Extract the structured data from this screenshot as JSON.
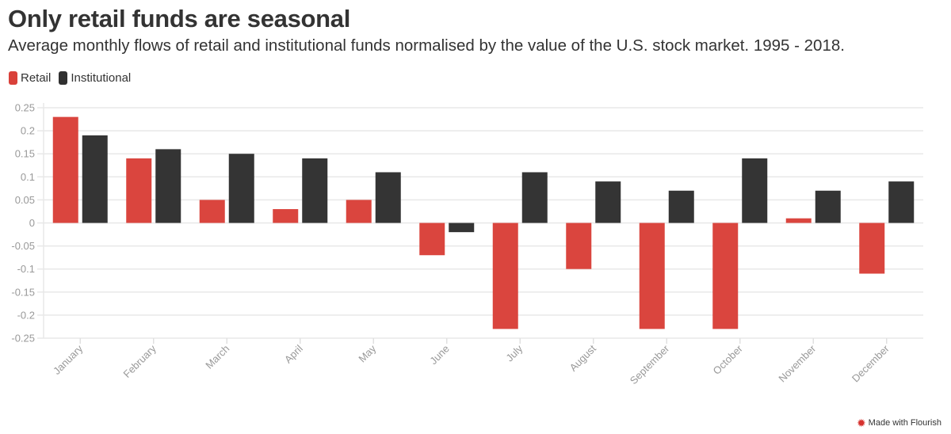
{
  "header": {
    "title": "Only retail funds are seasonal",
    "subtitle": "Average monthly flows of retail and institutional funds normalised by the value of the U.S. stock market. 1995 - 2018."
  },
  "legend": [
    {
      "label": "Retail",
      "color": "#d9413a"
    },
    {
      "label": "Institutional",
      "color": "#303030"
    }
  ],
  "footer": {
    "label": "Made with Flourish",
    "icon": "flourish-star-icon"
  },
  "chart_data": {
    "type": "bar",
    "title": "Only retail funds are seasonal",
    "subtitle": "Average monthly flows of retail and institutional funds normalised by the value of the U.S. stock market. 1995 - 2018.",
    "xlabel": "",
    "ylabel": "",
    "categories": [
      "January",
      "February",
      "March",
      "April",
      "May",
      "June",
      "July",
      "August",
      "September",
      "October",
      "November",
      "December"
    ],
    "series": [
      {
        "name": "Retail",
        "color": "#d9413a",
        "values": [
          0.23,
          0.14,
          0.05,
          0.03,
          0.05,
          -0.07,
          -0.23,
          -0.1,
          -0.23,
          -0.23,
          0.01,
          -0.11
        ]
      },
      {
        "name": "Institutional",
        "color": "#303030",
        "values": [
          0.19,
          0.16,
          0.15,
          0.14,
          0.11,
          -0.02,
          0.11,
          0.09,
          0.07,
          0.14,
          0.07,
          0.09
        ]
      }
    ],
    "ylim": [
      -0.25,
      0.25
    ],
    "yticks": [
      0.25,
      0.2,
      0.15,
      0.1,
      0.05,
      0,
      -0.05,
      -0.1,
      -0.15,
      -0.2,
      -0.25
    ],
    "ytick_labels": [
      "0.25",
      "0.2",
      "0.15",
      "0.1",
      "0.05",
      "0",
      "-0.05",
      "-0.1",
      "-0.15",
      "-0.2",
      "-0.25"
    ],
    "grid": true,
    "legend_position": "top-left"
  }
}
